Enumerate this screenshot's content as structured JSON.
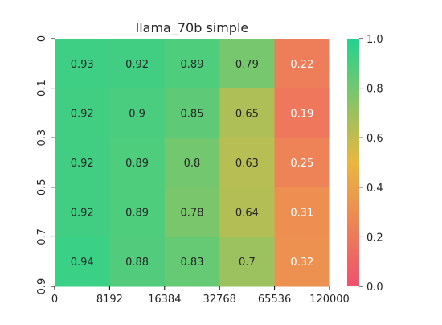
{
  "chart_data": {
    "type": "heatmap",
    "title": "llama_70b simple",
    "xlabel": "",
    "ylabel": "",
    "x_tick_labels": [
      "0",
      "8192",
      "16384",
      "32768",
      "65536",
      "120000"
    ],
    "y_tick_labels": [
      "0",
      "0.1",
      "0.3",
      "0.5",
      "0.7",
      "0.9"
    ],
    "values": [
      [
        0.93,
        0.92,
        0.89,
        0.79,
        0.22
      ],
      [
        0.92,
        0.9,
        0.85,
        0.65,
        0.19
      ],
      [
        0.92,
        0.89,
        0.8,
        0.63,
        0.25
      ],
      [
        0.92,
        0.89,
        0.78,
        0.64,
        0.31
      ],
      [
        0.94,
        0.88,
        0.83,
        0.7,
        0.32
      ]
    ],
    "colorbar": {
      "range": [
        0.0,
        1.0
      ],
      "tick_labels": [
        "0.0",
        "0.2",
        "0.4",
        "0.6",
        "0.8",
        "1.0"
      ],
      "colormap": [
        "#f0506e",
        "#ebb63f",
        "#22d38f"
      ]
    },
    "grid": false
  }
}
